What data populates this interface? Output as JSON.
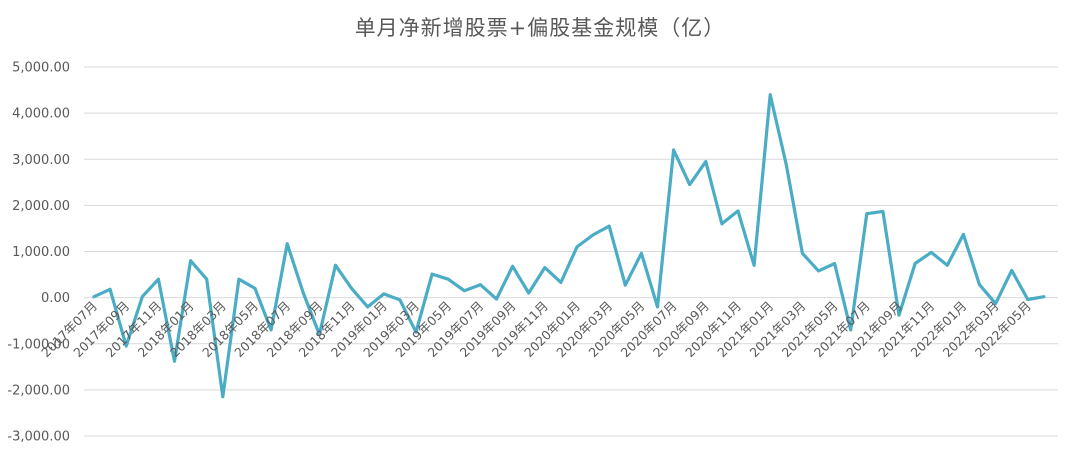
{
  "chart_data": {
    "type": "line",
    "title": "单月净新增股票+偏股基金规模（亿）",
    "xlabel": "",
    "ylabel": "",
    "ylim": [
      -3000,
      5000
    ],
    "yticks": [
      5000,
      4000,
      3000,
      2000,
      1000,
      0,
      -1000,
      -2000,
      -3000
    ],
    "ytick_labels": [
      "5,000.00",
      "4,000.00",
      "3,000.00",
      "2,000.00",
      "1,000.00",
      "0.00",
      "-1,000.00",
      "-2,000.00",
      "-3,000.00"
    ],
    "grid": true,
    "legend": "none",
    "line_color": "#4bacc6",
    "x": [
      "2017年07月",
      "2017年08月",
      "2017年09月",
      "2017年10月",
      "2017年11月",
      "2017年12月",
      "2018年01月",
      "2018年02月",
      "2018年03月",
      "2018年04月",
      "2018年05月",
      "2018年06月",
      "2018年07月",
      "2018年08月",
      "2018年09月",
      "2018年10月",
      "2018年11月",
      "2018年12月",
      "2019年01月",
      "2019年02月",
      "2019年03月",
      "2019年04月",
      "2019年05月",
      "2019年06月",
      "2019年07月",
      "2019年08月",
      "2019年09月",
      "2019年10月",
      "2019年11月",
      "2019年12月",
      "2020年01月",
      "2020年02月",
      "2020年03月",
      "2020年04月",
      "2020年05月",
      "2020年06月",
      "2020年07月",
      "2020年08月",
      "2020年09月",
      "2020年10月",
      "2020年11月",
      "2020年12月",
      "2021年01月",
      "2021年02月",
      "2021年03月",
      "2021年04月",
      "2021年05月",
      "2021年06月",
      "2021年07月",
      "2021年08月",
      "2021年09月",
      "2021年10月",
      "2021年11月",
      "2021年12月",
      "2022年01月",
      "2022年02月",
      "2022年03月",
      "2022年04月",
      "2022年05月",
      "2022年06月"
    ],
    "x_tick_labels": [
      "2017年07月",
      "2017年09月",
      "2017年11月",
      "2018年01月",
      "2018年03月",
      "2018年05月",
      "2018年07月",
      "2018年09月",
      "2018年11月",
      "2019年01月",
      "2019年03月",
      "2019年05月",
      "2019年07月",
      "2019年09月",
      "2019年11月",
      "2020年01月",
      "2020年03月",
      "2020年05月",
      "2020年07月",
      "2020年09月",
      "2020年11月",
      "2021年01月",
      "2021年03月",
      "2021年05月",
      "2021年07月",
      "2021年09月",
      "2021年11月",
      "2022年01月",
      "2022年03月",
      "2022年05月"
    ],
    "values": [
      20,
      180,
      -1050,
      20,
      400,
      -1380,
      800,
      400,
      -2150,
      400,
      200,
      -700,
      1170,
      100,
      -800,
      700,
      200,
      -200,
      80,
      -50,
      -750,
      510,
      400,
      150,
      280,
      -30,
      680,
      100,
      650,
      330,
      1100,
      1360,
      1550,
      270,
      960,
      -200,
      3200,
      2450,
      2950,
      1600,
      1880,
      700,
      4400,
      2880,
      960,
      580,
      740,
      -700,
      1820,
      1870,
      -380,
      740,
      980,
      700,
      1370,
      280,
      -130,
      590,
      -40,
      20
    ]
  }
}
